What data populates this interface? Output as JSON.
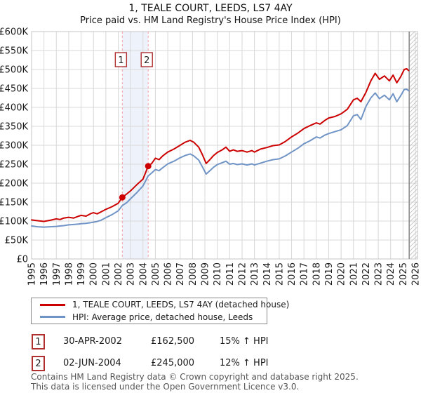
{
  "chart_data": {
    "type": "line",
    "title": "1, TEALE COURT, LEEDS, LS7 4AY",
    "subtitle": "Price paid vs. HM Land Registry's House Price Index (HPI)",
    "unit": "GBP thousands",
    "ylim": [
      0,
      600
    ],
    "xlim": [
      1995,
      2026.2
    ],
    "grid": true,
    "legend_position": "bottom",
    "y_tick_labels": [
      "£0",
      "£50K",
      "£100K",
      "£150K",
      "£200K",
      "£250K",
      "£300K",
      "£350K",
      "£400K",
      "£450K",
      "£500K",
      "£550K",
      "£600K"
    ],
    "x_tick_labels": [
      "1995",
      "1996",
      "1997",
      "1998",
      "1999",
      "2000",
      "2001",
      "2002",
      "2003",
      "2004",
      "2005",
      "2006",
      "2007",
      "2008",
      "2009",
      "2010",
      "2011",
      "2012",
      "2013",
      "2014",
      "2015",
      "2016",
      "2017",
      "2018",
      "2019",
      "2020",
      "2021",
      "2022",
      "2023",
      "2024",
      "2025",
      "2026"
    ],
    "x": [
      1995,
      1995.5,
      1996,
      1996.5,
      1997,
      1997.3,
      1997.6,
      1998,
      1998.4,
      1998.8,
      1999,
      1999.4,
      1999.8,
      2000,
      2000.3,
      2000.6,
      2001,
      2001.5,
      2002,
      2002.33,
      2002.7,
      2003,
      2003.5,
      2004,
      2004.42,
      2004.7,
      2005,
      2005.3,
      2005.6,
      2006,
      2006.5,
      2007,
      2007.4,
      2007.8,
      2008.1,
      2008.5,
      2008.8,
      2009.1,
      2009.4,
      2009.7,
      2010,
      2010.4,
      2010.7,
      2011,
      2011.3,
      2011.6,
      2012,
      2012.4,
      2012.8,
      2013,
      2013.5,
      2014,
      2014.5,
      2015,
      2015.5,
      2016,
      2016.5,
      2017,
      2017.5,
      2018,
      2018.3,
      2018.7,
      2019,
      2019.5,
      2020,
      2020.5,
      2021,
      2021.3,
      2021.6,
      2022,
      2022.4,
      2022.75,
      2023.1,
      2023.5,
      2023.9,
      2024.2,
      2024.5,
      2024.8,
      2025.1,
      2025.3,
      2025.45
    ],
    "series": [
      {
        "name": "1, TEALE COURT, LEEDS, LS7 4AY (detached house)",
        "color": "#cc0000",
        "values": [
          103,
          101,
          99,
          102,
          106,
          104,
          108,
          110,
          108,
          113,
          115,
          113,
          120,
          122,
          119,
          124,
          131,
          138,
          147,
          162.5,
          172,
          180,
          196,
          211,
          245,
          252,
          266,
          262,
          272,
          282,
          290,
          300,
          308,
          313,
          308,
          295,
          275,
          252,
          262,
          273,
          281,
          288,
          295,
          284,
          288,
          284,
          286,
          282,
          286,
          282,
          290,
          294,
          299,
          301,
          310,
          322,
          332,
          344,
          352,
          359,
          356,
          366,
          372,
          376,
          383,
          395,
          420,
          424,
          415,
          439,
          470,
          490,
          474,
          483,
          470,
          485,
          465,
          480,
          500,
          502,
          497
        ]
      },
      {
        "name": "HPI: Average price, detached house, Leeds",
        "color": "#7094c6",
        "values": [
          87,
          85,
          84,
          85,
          86,
          87,
          88,
          90,
          91,
          92,
          93,
          94,
          96,
          97,
          99,
          102,
          109,
          117,
          127,
          141,
          149,
          159,
          175,
          193,
          219,
          227,
          236,
          233,
          241,
          251,
          258,
          267,
          273,
          277,
          272,
          261,
          243,
          224,
          233,
          242,
          249,
          254,
          258,
          250,
          252,
          249,
          251,
          248,
          251,
          248,
          253,
          258,
          262,
          264,
          272,
          282,
          292,
          304,
          312,
          322,
          319,
          327,
          331,
          336,
          341,
          352,
          378,
          381,
          368,
          402,
          425,
          438,
          423,
          432,
          420,
          436,
          415,
          430,
          447,
          448,
          444
        ]
      }
    ],
    "sale_markers": [
      {
        "label": "1",
        "x": 2002.33,
        "value": 162.5
      },
      {
        "label": "2",
        "x": 2004.42,
        "value": 245
      }
    ],
    "shaded_band": [
      2002.33,
      2004.42
    ],
    "future_hatch_start": 2025.5,
    "colors": {
      "grid": "#d8d8d8",
      "border": "#c4c4c4",
      "dashed_marker": "#f2a2a2",
      "band": "#eef2fb",
      "hatch": "#c8c8c8",
      "data_end_line": "#888888",
      "badge_border": "#b03030",
      "tick_text": "#1a1a1a"
    }
  },
  "transactions": [
    {
      "num": "1",
      "date": "30-APR-2002",
      "price": "£162,500",
      "hpi": "15% ↑ HPI"
    },
    {
      "num": "2",
      "date": "02-JUN-2004",
      "price": "£245,000",
      "hpi": "12% ↑ HPI"
    }
  ],
  "footer": {
    "line1": "Contains HM Land Registry data © Crown copyright and database right 2025.",
    "line2": "This data is licensed under the Open Government Licence v3.0."
  }
}
